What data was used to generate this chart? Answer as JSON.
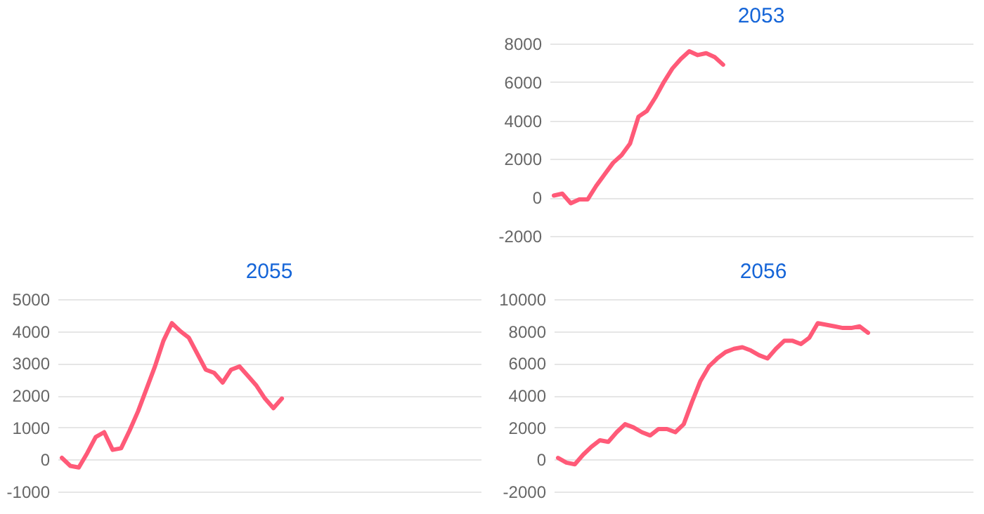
{
  "chart_data": [
    {
      "type": "line",
      "title": "2053",
      "categories": [
        null,
        null,
        null,
        null,
        null,
        null,
        null,
        null,
        null,
        null,
        null,
        null,
        null,
        null,
        null,
        null,
        null,
        null,
        null,
        null,
        null,
        null,
        null,
        null,
        null,
        null,
        null,
        null,
        null,
        null,
        null,
        null,
        null,
        null,
        null,
        null,
        null,
        null,
        null,
        null,
        null,
        null,
        null,
        null,
        null,
        null,
        null,
        null,
        null,
        null
      ],
      "series": [
        {
          "color": "#ff5a78",
          "values": [
            100,
            200,
            -300,
            -100,
            -100,
            600,
            1200,
            1800,
            2200,
            2800,
            4200,
            4500,
            5200,
            6000,
            6700,
            7200,
            7600,
            7400,
            7500,
            7300,
            6900,
            null,
            null,
            null,
            null,
            null,
            null,
            null,
            null,
            null,
            null,
            null,
            null,
            null,
            null,
            null,
            null,
            null,
            null,
            null,
            null,
            null,
            null,
            null,
            null,
            null,
            null,
            null,
            null,
            null
          ]
        }
      ],
      "ylim": [
        -2000,
        8000
      ],
      "yticks": [
        -2000,
        0,
        2000,
        4000,
        6000,
        8000
      ],
      "grid": "y",
      "tick_labels": "y",
      "marker": "none"
    },
    {
      "type": "line",
      "title": "2055",
      "categories": [
        null,
        null,
        null,
        null,
        null,
        null,
        null,
        null,
        null,
        null,
        null,
        null,
        null,
        null,
        null,
        null,
        null,
        null,
        null,
        null,
        null,
        null,
        null,
        null,
        null,
        null,
        null,
        null,
        null,
        null,
        null,
        null,
        null,
        null,
        null,
        null,
        null,
        null,
        null,
        null,
        null,
        null,
        null,
        null,
        null,
        null,
        null,
        null,
        null,
        null
      ],
      "series": [
        {
          "color": "#ff5a78",
          "values": [
            50,
            -200,
            -250,
            200,
            700,
            850,
            300,
            350,
            900,
            1500,
            2200,
            2900,
            3700,
            4250,
            4000,
            3800,
            3300,
            2800,
            2700,
            2400,
            2800,
            2900,
            2600,
            2300,
            1900,
            1600,
            1900,
            null,
            null,
            null,
            null,
            null,
            null,
            null,
            null,
            null,
            null,
            null,
            null,
            null,
            null,
            null,
            null,
            null,
            null,
            null,
            null,
            null,
            null,
            null
          ]
        }
      ],
      "ylim": [
        -1000,
        5000
      ],
      "yticks": [
        -1000,
        0,
        1000,
        2000,
        3000,
        4000,
        5000
      ],
      "grid": "y",
      "tick_labels": "y",
      "marker": "none"
    },
    {
      "type": "line",
      "title": "2056",
      "categories": [
        null,
        null,
        null,
        null,
        null,
        null,
        null,
        null,
        null,
        null,
        null,
        null,
        null,
        null,
        null,
        null,
        null,
        null,
        null,
        null,
        null,
        null,
        null,
        null,
        null,
        null,
        null,
        null,
        null,
        null,
        null,
        null,
        null,
        null,
        null,
        null,
        null,
        null,
        null,
        null,
        null,
        null,
        null,
        null,
        null,
        null,
        null,
        null,
        null,
        null
      ],
      "series": [
        {
          "color": "#ff5a78",
          "values": [
            100,
            -200,
            -300,
            300,
            800,
            1200,
            1100,
            1700,
            2200,
            2000,
            1700,
            1500,
            1900,
            1900,
            1700,
            2200,
            3600,
            4900,
            5800,
            6300,
            6700,
            6900,
            7000,
            6800,
            6500,
            6300,
            6900,
            7400,
            7400,
            7200,
            7600,
            8500,
            8400,
            8300,
            8200,
            8200,
            8300,
            7900,
            null,
            null,
            null,
            null,
            null,
            null,
            null,
            null,
            null,
            null,
            null,
            null
          ]
        }
      ],
      "ylim": [
        -2000,
        10000
      ],
      "yticks": [
        -2000,
        0,
        2000,
        4000,
        6000,
        8000,
        10000
      ],
      "grid": "y",
      "tick_labels": "y",
      "marker": "none"
    }
  ]
}
